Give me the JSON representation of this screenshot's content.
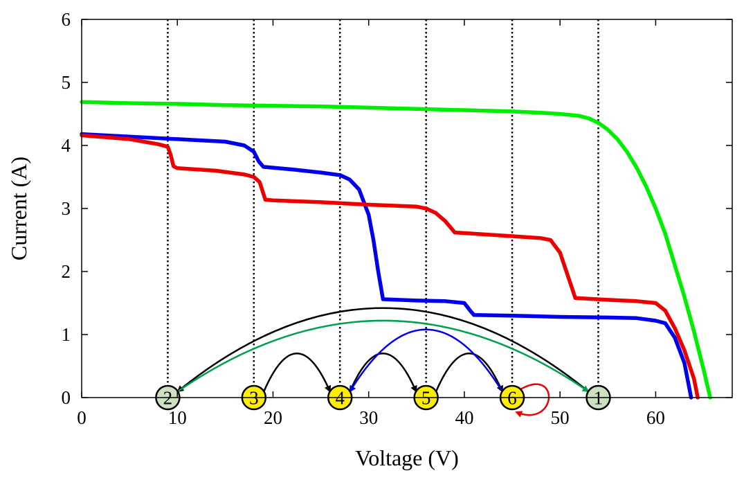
{
  "chart_data": {
    "type": "line",
    "xlabel": "Voltage (V)",
    "ylabel": "Current (A)",
    "xlim": [
      0,
      68
    ],
    "ylim": [
      0,
      6
    ],
    "xticks": [
      0,
      10,
      20,
      30,
      40,
      50,
      60
    ],
    "yticks": [
      0,
      1,
      2,
      3,
      4,
      5,
      6
    ],
    "grid": false,
    "series": [
      {
        "color": "#00ee00",
        "points": [
          [
            0,
            4.69
          ],
          [
            5,
            4.67
          ],
          [
            10,
            4.66
          ],
          [
            15,
            4.64
          ],
          [
            20,
            4.63
          ],
          [
            25,
            4.62
          ],
          [
            30,
            4.6
          ],
          [
            35,
            4.58
          ],
          [
            40,
            4.56
          ],
          [
            45,
            4.54
          ],
          [
            48,
            4.52
          ],
          [
            50,
            4.5
          ],
          [
            52,
            4.47
          ],
          [
            53,
            4.43
          ],
          [
            54,
            4.36
          ],
          [
            55,
            4.25
          ],
          [
            56,
            4.1
          ],
          [
            57,
            3.9
          ],
          [
            58,
            3.65
          ],
          [
            59,
            3.35
          ],
          [
            60,
            3.0
          ],
          [
            61,
            2.6
          ],
          [
            62,
            2.1
          ],
          [
            63,
            1.6
          ],
          [
            64,
            1.05
          ],
          [
            65,
            0.45
          ],
          [
            65.7,
            0.0
          ]
        ]
      },
      {
        "color": "#0000ee",
        "points": [
          [
            0,
            4.18
          ],
          [
            5,
            4.14
          ],
          [
            10,
            4.1
          ],
          [
            15,
            4.06
          ],
          [
            17,
            4.0
          ],
          [
            18,
            3.9
          ],
          [
            18.5,
            3.75
          ],
          [
            19,
            3.66
          ],
          [
            22,
            3.62
          ],
          [
            25,
            3.57
          ],
          [
            27,
            3.53
          ],
          [
            28,
            3.46
          ],
          [
            29,
            3.3
          ],
          [
            30,
            2.9
          ],
          [
            30.5,
            2.5
          ],
          [
            31,
            2.0
          ],
          [
            31.5,
            1.56
          ],
          [
            35,
            1.54
          ],
          [
            38,
            1.53
          ],
          [
            40,
            1.5
          ],
          [
            40.5,
            1.4
          ],
          [
            41,
            1.31
          ],
          [
            45,
            1.3
          ],
          [
            50,
            1.28
          ],
          [
            55,
            1.27
          ],
          [
            58,
            1.26
          ],
          [
            60,
            1.22
          ],
          [
            61,
            1.18
          ],
          [
            62,
            0.95
          ],
          [
            63,
            0.55
          ],
          [
            63.7,
            0.0
          ]
        ]
      },
      {
        "color": "#ee0000",
        "points": [
          [
            0,
            4.16
          ],
          [
            5,
            4.1
          ],
          [
            8,
            4.02
          ],
          [
            9,
            3.98
          ],
          [
            9.3,
            3.85
          ],
          [
            9.6,
            3.67
          ],
          [
            10,
            3.64
          ],
          [
            14,
            3.6
          ],
          [
            17,
            3.54
          ],
          [
            18,
            3.5
          ],
          [
            18.6,
            3.42
          ],
          [
            19.2,
            3.14
          ],
          [
            20,
            3.13
          ],
          [
            25,
            3.1
          ],
          [
            30,
            3.06
          ],
          [
            35,
            3.03
          ],
          [
            36,
            3.0
          ],
          [
            37,
            2.93
          ],
          [
            38,
            2.8
          ],
          [
            39,
            2.62
          ],
          [
            45,
            2.56
          ],
          [
            48,
            2.53
          ],
          [
            49,
            2.5
          ],
          [
            50,
            2.3
          ],
          [
            51,
            1.85
          ],
          [
            51.6,
            1.58
          ],
          [
            55,
            1.55
          ],
          [
            58,
            1.53
          ],
          [
            60,
            1.5
          ],
          [
            61,
            1.38
          ],
          [
            62,
            1.1
          ],
          [
            63,
            0.75
          ],
          [
            64,
            0.3
          ],
          [
            64.4,
            0.0
          ]
        ]
      }
    ],
    "markers": {
      "x": [
        9,
        18,
        27,
        36,
        45,
        54
      ]
    },
    "nodes": [
      {
        "label": "2",
        "x": 9,
        "fill": "#cde0c0"
      },
      {
        "label": "3",
        "x": 18,
        "fill": "#ffee00"
      },
      {
        "label": "4",
        "x": 27,
        "fill": "#ffee00"
      },
      {
        "label": "5",
        "x": 36,
        "fill": "#ffee00"
      },
      {
        "label": "6",
        "x": 45,
        "fill": "#ffee00"
      },
      {
        "label": "1",
        "x": 54,
        "fill": "#cde0c0"
      }
    ],
    "transitions": [
      {
        "from": "1",
        "to": "2",
        "color": "#000000",
        "peak": 1.42
      },
      {
        "from": "2",
        "to": "1",
        "color": "#00a050",
        "peak": 1.22
      },
      {
        "from": "3",
        "to": "4",
        "color": "#000000",
        "peak": 0.7
      },
      {
        "from": "4",
        "to": "5",
        "color": "#000000",
        "peak": 0.7
      },
      {
        "from": "5",
        "to": "6",
        "color": "#000000",
        "peak": 0.7
      },
      {
        "from": "6",
        "to": "4",
        "color": "#0000ee",
        "peak": 1.08
      },
      {
        "from": "6",
        "to": "6",
        "color": "#ee0000",
        "peak": 0
      }
    ]
  }
}
